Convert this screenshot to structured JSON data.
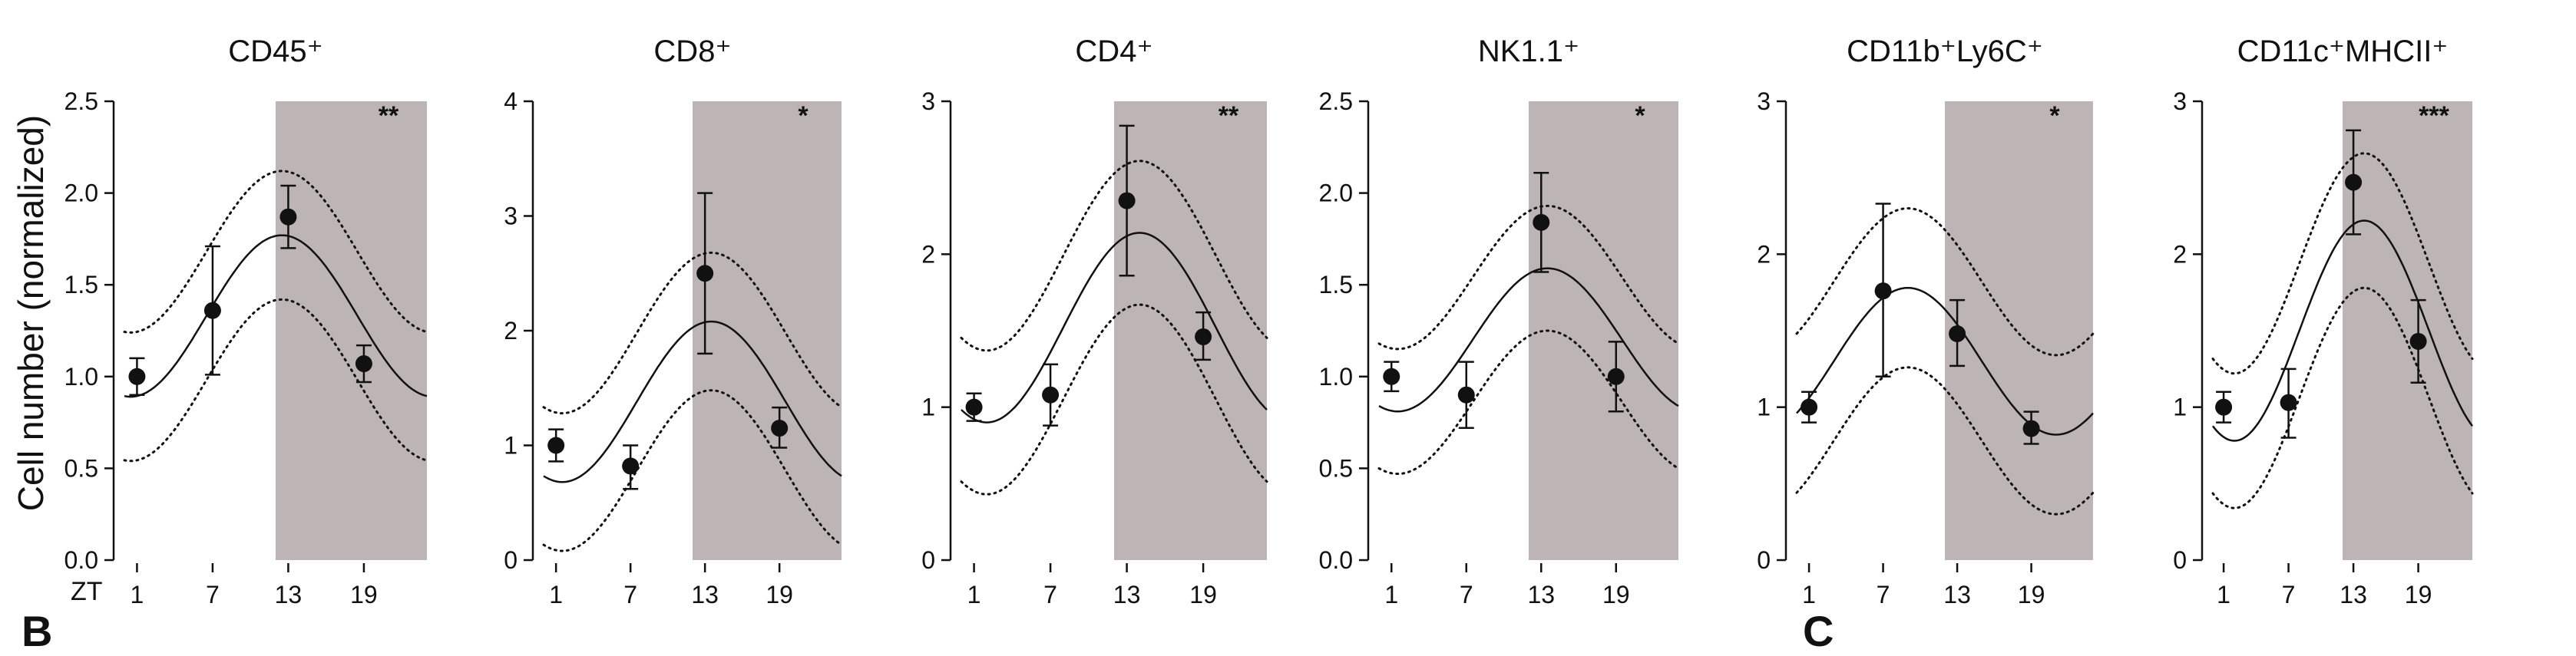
{
  "figure": {
    "ylabel": "Cell number (normalized)",
    "xcorner_label": "ZT",
    "cropped_letters": [
      "B",
      "C"
    ]
  },
  "chart_data": [
    {
      "type": "line",
      "title": "CD45⁺",
      "significance": "**",
      "ylim": [
        0,
        2.5
      ],
      "yticks": [
        "0.0",
        "0.5",
        "1.0",
        "1.5",
        "2.0",
        "2.5"
      ],
      "ytick_values": [
        0,
        0.5,
        1.0,
        1.5,
        2.0,
        2.5
      ],
      "xticks": [
        1,
        7,
        13,
        19
      ],
      "xlim": [
        0,
        24
      ],
      "dark_phase": [
        12,
        24
      ],
      "points": [
        {
          "x": 1,
          "y": 1.0,
          "err_low": 0.9,
          "err_high": 1.1
        },
        {
          "x": 7,
          "y": 1.36,
          "err_low": 1.01,
          "err_high": 1.71
        },
        {
          "x": 13,
          "y": 1.87,
          "err_low": 1.7,
          "err_high": 2.04
        },
        {
          "x": 19,
          "y": 1.07,
          "err_low": 0.97,
          "err_high": 1.17
        }
      ],
      "fit": {
        "mesor": 1.33,
        "amplitude": 0.44,
        "peak_zt": 12.5
      },
      "ci_band": {
        "upper_offset": 0.35,
        "lower_offset": 0.35
      }
    },
    {
      "type": "line",
      "title": "CD8⁺",
      "significance": "*",
      "ylim": [
        0,
        4
      ],
      "yticks": [
        "0",
        "1",
        "2",
        "3",
        "4"
      ],
      "ytick_values": [
        0,
        1,
        2,
        3,
        4
      ],
      "xticks": [
        1,
        7,
        13,
        19
      ],
      "xlim": [
        0,
        24
      ],
      "dark_phase": [
        12,
        24
      ],
      "points": [
        {
          "x": 1,
          "y": 1.0,
          "err_low": 0.86,
          "err_high": 1.14
        },
        {
          "x": 7,
          "y": 0.82,
          "err_low": 0.62,
          "err_high": 1.0
        },
        {
          "x": 13,
          "y": 2.5,
          "err_low": 1.8,
          "err_high": 3.2
        },
        {
          "x": 19,
          "y": 1.15,
          "err_low": 0.98,
          "err_high": 1.33
        }
      ],
      "fit": {
        "mesor": 1.38,
        "amplitude": 0.7,
        "peak_zt": 13.5
      },
      "ci_band": {
        "upper_offset": 0.6,
        "lower_offset": 0.6
      }
    },
    {
      "type": "line",
      "title": "CD4⁺",
      "significance": "**",
      "ylim": [
        0,
        3
      ],
      "yticks": [
        "0",
        "1",
        "2",
        "3"
      ],
      "ytick_values": [
        0,
        1,
        2,
        3
      ],
      "xticks": [
        1,
        7,
        13,
        19
      ],
      "xlim": [
        0,
        24
      ],
      "dark_phase": [
        12,
        24
      ],
      "points": [
        {
          "x": 1,
          "y": 1.0,
          "err_low": 0.91,
          "err_high": 1.09
        },
        {
          "x": 7,
          "y": 1.08,
          "err_low": 0.88,
          "err_high": 1.28
        },
        {
          "x": 13,
          "y": 2.35,
          "err_low": 1.86,
          "err_high": 2.84
        },
        {
          "x": 19,
          "y": 1.46,
          "err_low": 1.31,
          "err_high": 1.62
        }
      ],
      "fit": {
        "mesor": 1.52,
        "amplitude": 0.62,
        "peak_zt": 14
      },
      "ci_band": {
        "upper_offset": 0.47,
        "lower_offset": 0.47
      }
    },
    {
      "type": "line",
      "title": "NK1.1⁺",
      "significance": "*",
      "ylim": [
        0,
        2.5
      ],
      "yticks": [
        "0.0",
        "0.5",
        "1.0",
        "1.5",
        "2.0",
        "2.5"
      ],
      "ytick_values": [
        0,
        0.5,
        1.0,
        1.5,
        2.0,
        2.5
      ],
      "xticks": [
        1,
        7,
        13,
        19
      ],
      "xlim": [
        0,
        24
      ],
      "dark_phase": [
        12,
        24
      ],
      "points": [
        {
          "x": 1,
          "y": 1.0,
          "err_low": 0.92,
          "err_high": 1.08
        },
        {
          "x": 7,
          "y": 0.9,
          "err_low": 0.72,
          "err_high": 1.08
        },
        {
          "x": 13,
          "y": 1.84,
          "err_low": 1.57,
          "err_high": 2.11
        },
        {
          "x": 19,
          "y": 1.0,
          "err_low": 0.81,
          "err_high": 1.19
        }
      ],
      "fit": {
        "mesor": 1.2,
        "amplitude": 0.39,
        "peak_zt": 13.5
      },
      "ci_band": {
        "upper_offset": 0.34,
        "lower_offset": 0.34
      }
    },
    {
      "type": "line",
      "title": "CD11b⁺Ly6C⁺",
      "significance": "*",
      "ylim": [
        0,
        3
      ],
      "yticks": [
        "0",
        "1",
        "2",
        "3"
      ],
      "ytick_values": [
        0,
        1,
        2,
        3
      ],
      "xticks": [
        1,
        7,
        13,
        19
      ],
      "xlim": [
        0,
        24
      ],
      "dark_phase": [
        12,
        24
      ],
      "points": [
        {
          "x": 1,
          "y": 1.0,
          "err_low": 0.9,
          "err_high": 1.1
        },
        {
          "x": 7,
          "y": 1.76,
          "err_low": 1.2,
          "err_high": 2.33
        },
        {
          "x": 13,
          "y": 1.48,
          "err_low": 1.27,
          "err_high": 1.7
        },
        {
          "x": 19,
          "y": 0.86,
          "err_low": 0.76,
          "err_high": 0.97
        }
      ],
      "fit": {
        "mesor": 1.3,
        "amplitude": 0.48,
        "peak_zt": 9
      },
      "ci_band": {
        "upper_offset": 0.52,
        "lower_offset": 0.52
      }
    },
    {
      "type": "line",
      "title": "CD11c⁺MHCII⁺",
      "significance": "***",
      "ylim": [
        0,
        3
      ],
      "yticks": [
        "0",
        "1",
        "2",
        "3"
      ],
      "ytick_values": [
        0,
        1,
        2,
        3
      ],
      "xticks": [
        1,
        7,
        13,
        19
      ],
      "xlim": [
        0,
        24
      ],
      "dark_phase": [
        12,
        24
      ],
      "points": [
        {
          "x": 1,
          "y": 1.0,
          "err_low": 0.9,
          "err_high": 1.1
        },
        {
          "x": 7,
          "y": 1.03,
          "err_low": 0.8,
          "err_high": 1.25
        },
        {
          "x": 13,
          "y": 2.47,
          "err_low": 2.13,
          "err_high": 2.81
        },
        {
          "x": 19,
          "y": 1.43,
          "err_low": 1.16,
          "err_high": 1.7
        }
      ],
      "fit": {
        "mesor": 1.5,
        "amplitude": 0.72,
        "peak_zt": 14
      },
      "ci_band": {
        "upper_offset": 0.44,
        "lower_offset": 0.44
      }
    }
  ],
  "style": {
    "shade_color": "#bdb5b5",
    "line_color": "#111111",
    "point_color": "#111111"
  }
}
